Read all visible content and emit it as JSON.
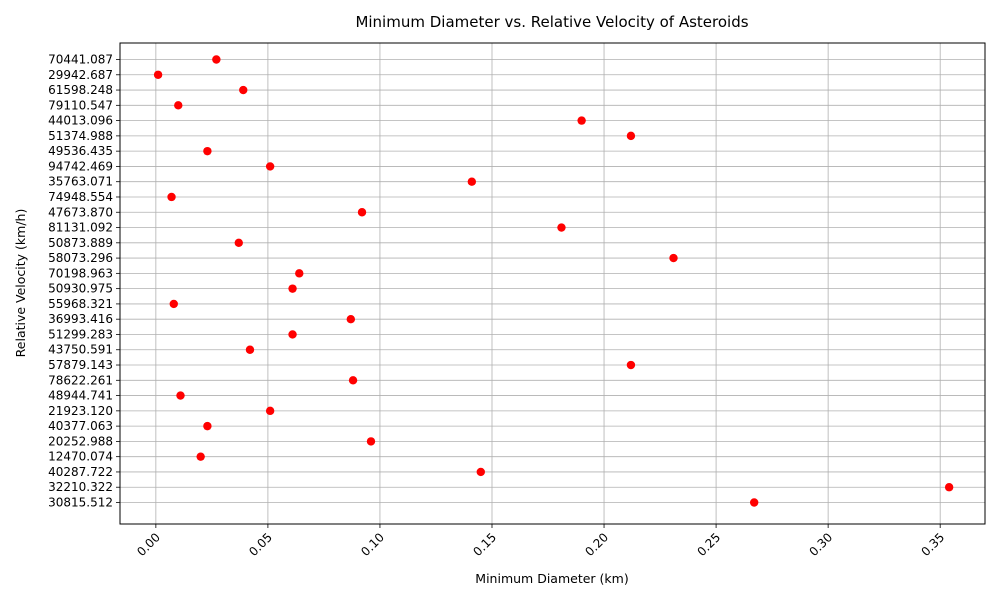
{
  "chart_data": {
    "type": "scatter",
    "title": "Minimum Diameter vs. Relative Velocity of Asteroids",
    "xlabel": "Minimum Diameter (km)",
    "ylabel": "Relative Velocity (km/h)",
    "xlim": [
      -0.016,
      0.37
    ],
    "x_ticks": [
      "0.00",
      "0.05",
      "0.10",
      "0.15",
      "0.20",
      "0.25",
      "0.30",
      "0.35"
    ],
    "x_tick_values": [
      0.0,
      0.05,
      0.1,
      0.15,
      0.2,
      0.25,
      0.3,
      0.35
    ],
    "y_axis_categorical": true,
    "grid": true,
    "marker_color": "#ff0000",
    "points": [
      {
        "y": "30815.512",
        "x": 0.267
      },
      {
        "y": "32210.322",
        "x": 0.354
      },
      {
        "y": "40287.722",
        "x": 0.145
      },
      {
        "y": "12470.074",
        "x": 0.02
      },
      {
        "y": "20252.988",
        "x": 0.096
      },
      {
        "y": "40377.063",
        "x": 0.023
      },
      {
        "y": "21923.120",
        "x": 0.051
      },
      {
        "y": "48944.741",
        "x": 0.011
      },
      {
        "y": "78622.261",
        "x": 0.088
      },
      {
        "y": "57879.143",
        "x": 0.212
      },
      {
        "y": "43750.591",
        "x": 0.042
      },
      {
        "y": "51299.283",
        "x": 0.061
      },
      {
        "y": "36993.416",
        "x": 0.087
      },
      {
        "y": "55968.321",
        "x": 0.008
      },
      {
        "y": "50930.975",
        "x": 0.061
      },
      {
        "y": "70198.963",
        "x": 0.064
      },
      {
        "y": "58073.296",
        "x": 0.231
      },
      {
        "y": "50873.889",
        "x": 0.037
      },
      {
        "y": "81131.092",
        "x": 0.181
      },
      {
        "y": "47673.870",
        "x": 0.092
      },
      {
        "y": "74948.554",
        "x": 0.007
      },
      {
        "y": "35763.071",
        "x": 0.141
      },
      {
        "y": "94742.469",
        "x": 0.051
      },
      {
        "y": "49536.435",
        "x": 0.023
      },
      {
        "y": "51374.988",
        "x": 0.212
      },
      {
        "y": "44013.096",
        "x": 0.19
      },
      {
        "y": "79110.547",
        "x": 0.01
      },
      {
        "y": "61598.248",
        "x": 0.039
      },
      {
        "y": "29942.687",
        "x": 0.001
      },
      {
        "y": "70441.087",
        "x": 0.027
      }
    ]
  }
}
